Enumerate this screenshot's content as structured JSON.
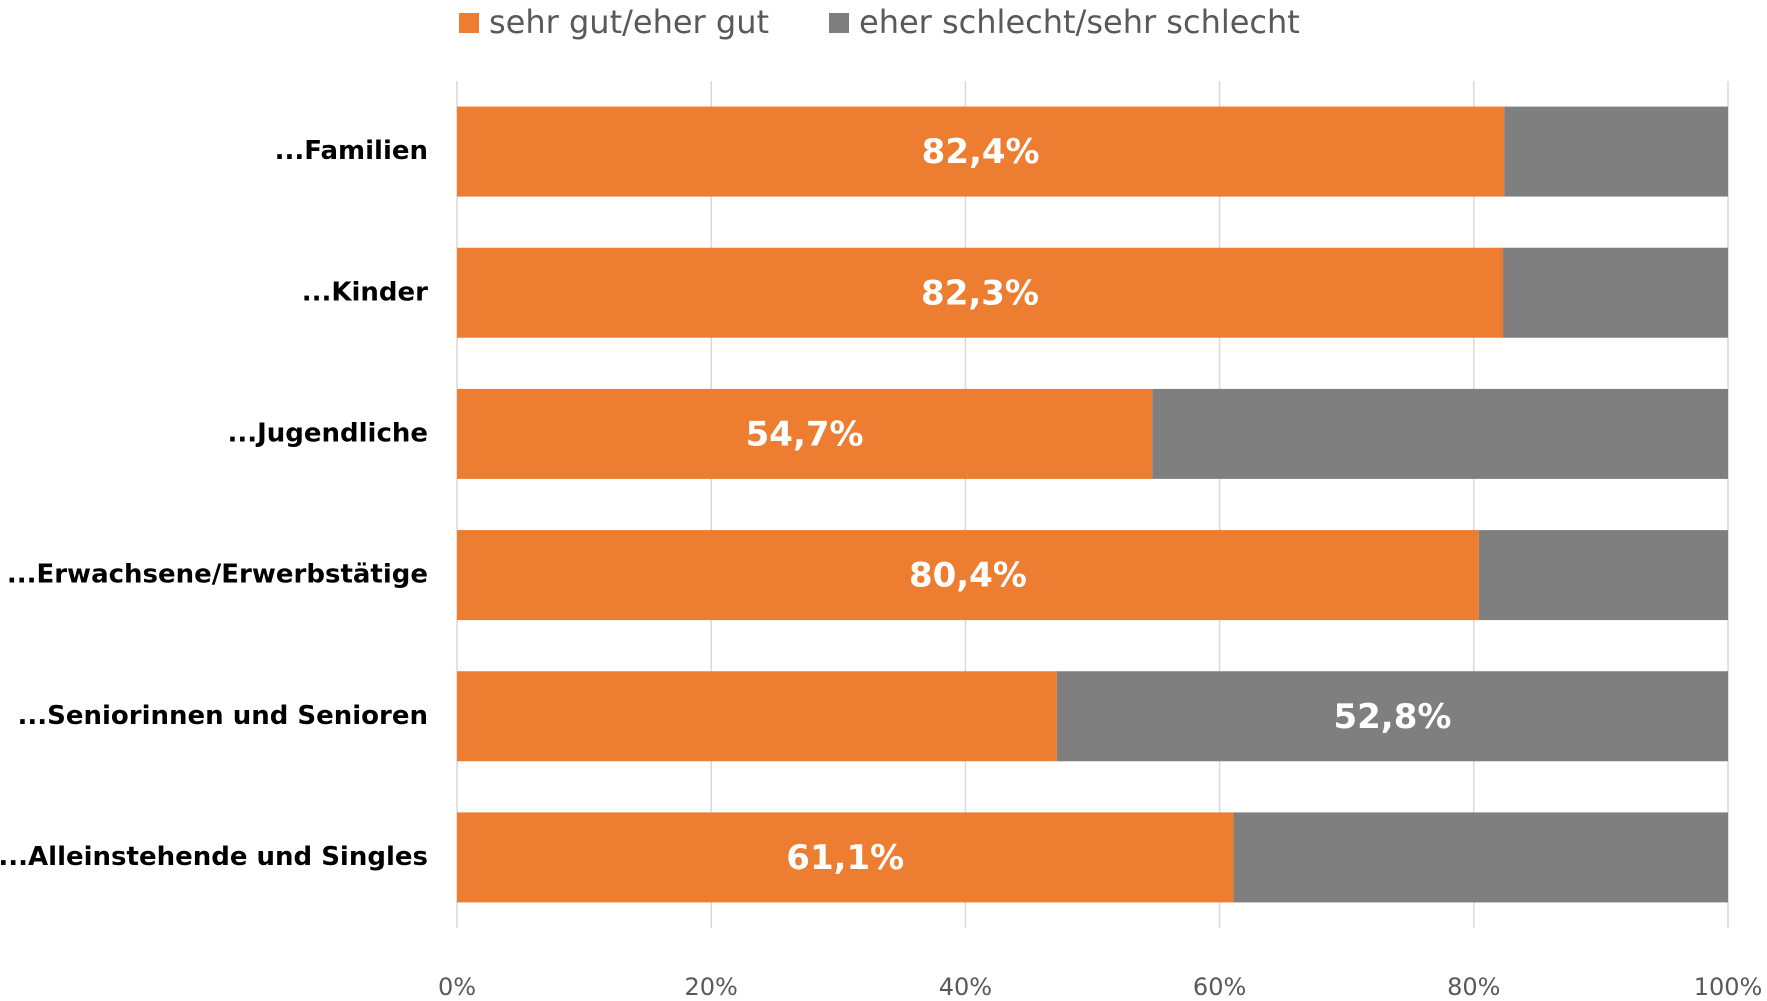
{
  "chart_data": {
    "type": "bar",
    "orientation": "horizontal",
    "stacked": true,
    "categories": [
      "...Familien",
      "...Kinder",
      "...Jugendliche",
      "...Erwachsene/Erwerbstätige",
      "...Seniorinnen und Senioren",
      "...Alleinstehende und Singles"
    ],
    "series": [
      {
        "name": "sehr gut/eher gut",
        "color": "#ed7d31",
        "values": [
          82.4,
          82.3,
          54.7,
          80.4,
          47.2,
          61.1
        ],
        "value_labels": [
          "82,4%",
          "82,3%",
          "54,7%",
          "80,4%",
          null,
          "61,1%"
        ]
      },
      {
        "name": "eher schlecht/sehr schlecht",
        "color": "#7f7f7f",
        "values": [
          17.6,
          17.7,
          45.3,
          19.6,
          52.8,
          38.9
        ],
        "value_labels": [
          null,
          null,
          null,
          null,
          "52,8%",
          null
        ]
      }
    ],
    "xlim": [
      0,
      100
    ],
    "xticks": [
      {
        "value": 0,
        "label": "0%"
      },
      {
        "value": 20,
        "label": "20%"
      },
      {
        "value": 40,
        "label": "40%"
      },
      {
        "value": 60,
        "label": "60%"
      },
      {
        "value": 80,
        "label": "80%"
      },
      {
        "value": 100,
        "label": "100%"
      }
    ],
    "grid": true,
    "legend": "top"
  }
}
